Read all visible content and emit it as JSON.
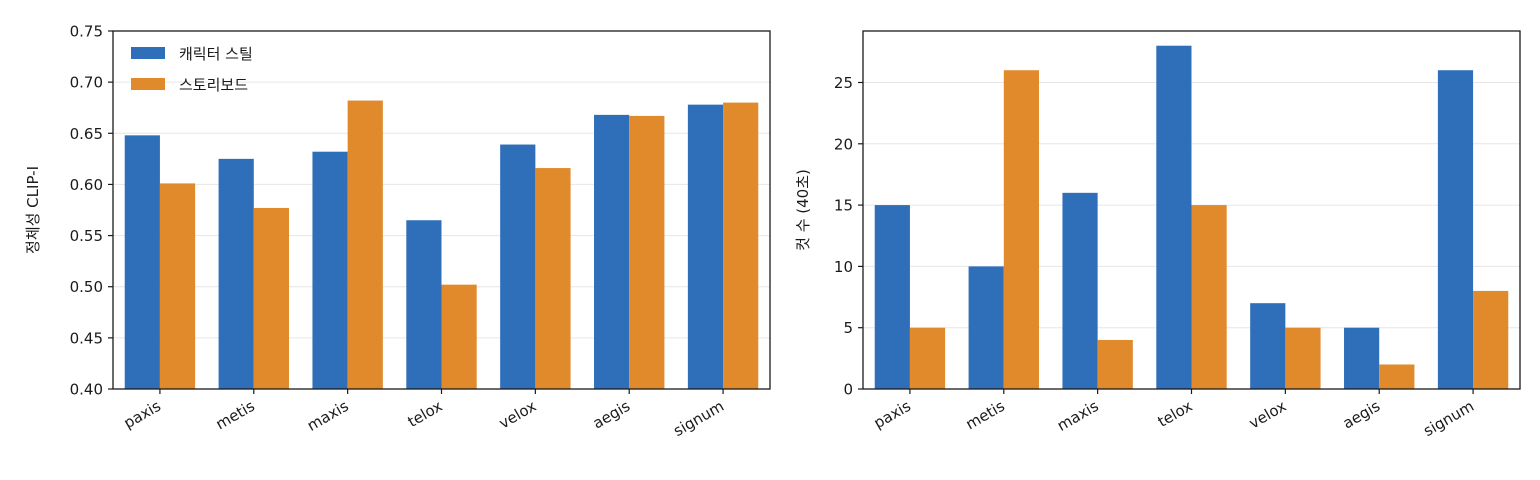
{
  "chart_data": [
    {
      "type": "bar",
      "categories": [
        "paxis",
        "metis",
        "maxis",
        "telox",
        "velox",
        "aegis",
        "signum"
      ],
      "series": [
        {
          "name": "캐릭터 스틸",
          "color": "#2f6fba",
          "values": [
            0.648,
            0.625,
            0.632,
            0.565,
            0.639,
            0.668,
            0.678
          ]
        },
        {
          "name": "스토리보드",
          "color": "#e08a2c",
          "values": [
            0.601,
            0.577,
            0.682,
            0.502,
            0.616,
            0.667,
            0.68
          ]
        }
      ],
      "title": "",
      "xlabel": "",
      "ylabel": "정체성 CLIP-I",
      "ylim": [
        0.4,
        0.75
      ],
      "yticks": [
        "0.40",
        "0.45",
        "0.50",
        "0.55",
        "0.60",
        "0.65",
        "0.70",
        "0.75"
      ],
      "grid": "horizontal",
      "legend": "top-left"
    },
    {
      "type": "bar",
      "categories": [
        "paxis",
        "metis",
        "maxis",
        "telox",
        "velox",
        "aegis",
        "signum"
      ],
      "series": [
        {
          "name": "캐릭터 스틸",
          "color": "#2f6fba",
          "values": [
            15,
            10,
            16,
            28,
            7,
            5,
            26
          ]
        },
        {
          "name": "스토리보드",
          "color": "#e08a2c",
          "values": [
            5,
            26,
            4,
            15,
            5,
            2,
            8
          ]
        }
      ],
      "title": "",
      "xlabel": "",
      "ylabel": "컷 수 (40초)",
      "ylim": [
        0,
        29.2
      ],
      "yticks": [
        "0",
        "5",
        "10",
        "15",
        "20",
        "25"
      ],
      "grid": "horizontal",
      "legend": "none"
    }
  ]
}
